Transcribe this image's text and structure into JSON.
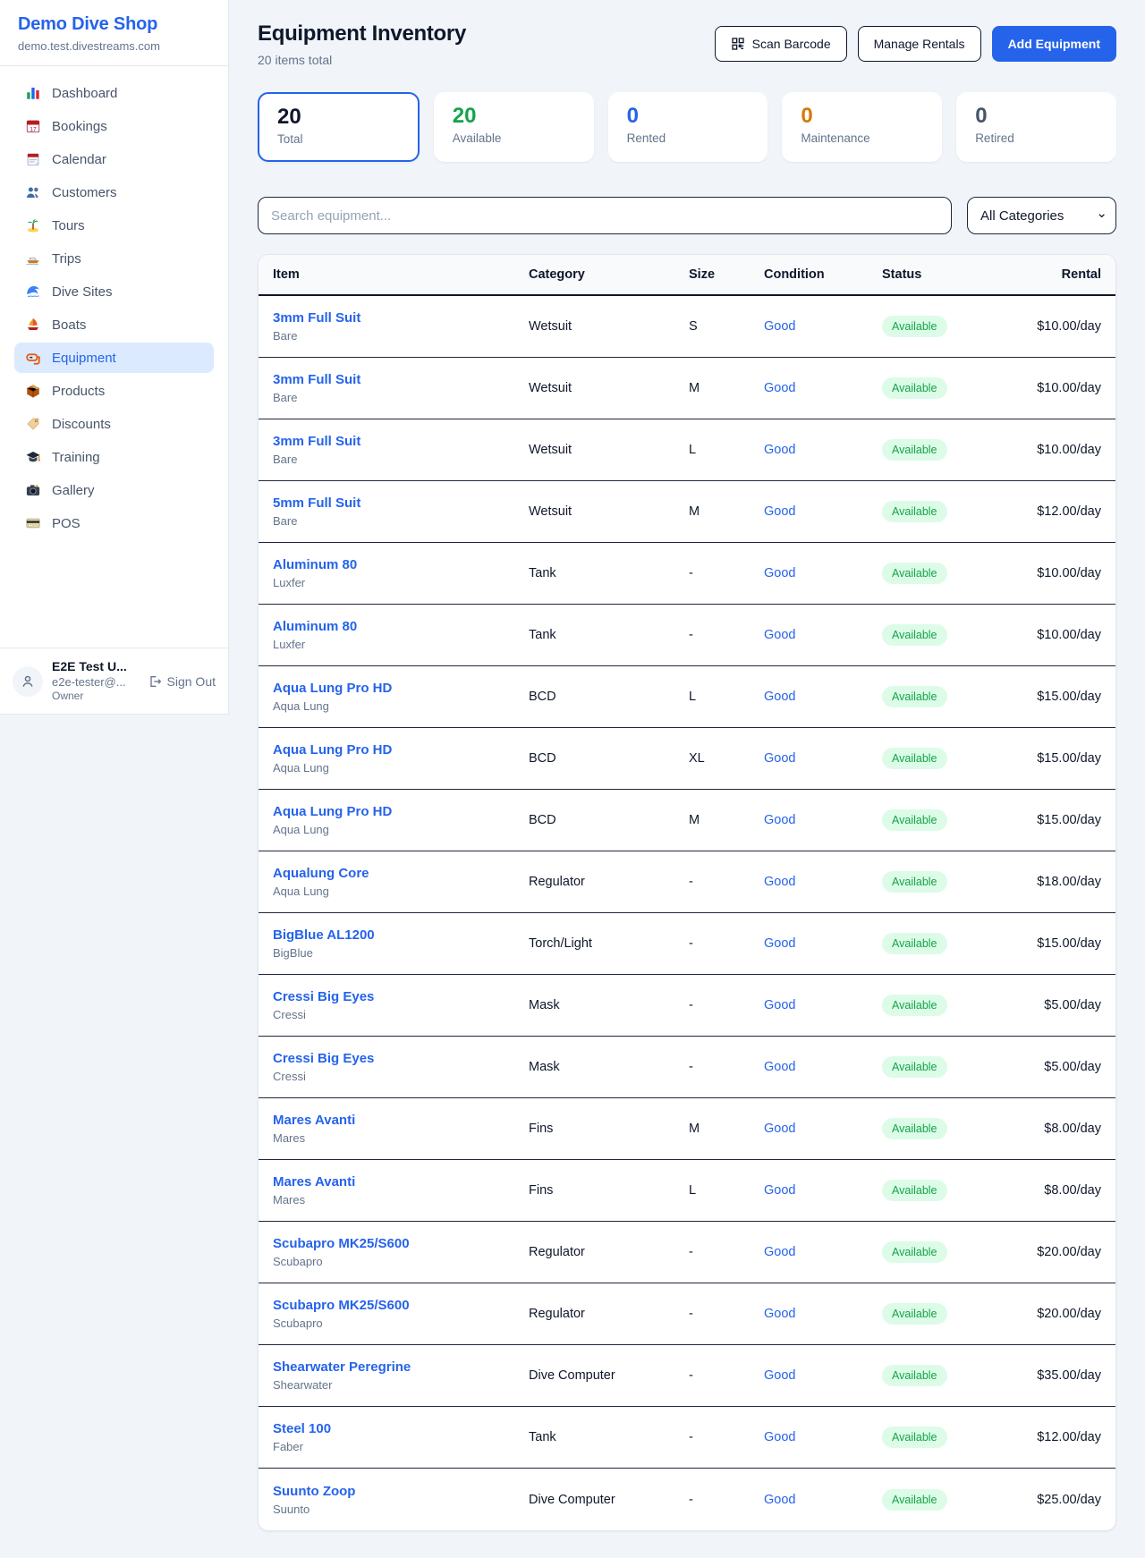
{
  "colors": {
    "accent": "#2563eb",
    "available_green": "#16a34a",
    "maintenance_orange": "#d97706",
    "retired_gray": "#475569",
    "badge_bg": "#dcfce7"
  },
  "sidebar": {
    "brand": "Demo Dive Shop",
    "domain": "demo.test.divestreams.com",
    "items": [
      {
        "label": "Dashboard",
        "icon": "bar-chart-icon",
        "active": false
      },
      {
        "label": "Bookings",
        "icon": "calendar-icon",
        "active": false
      },
      {
        "label": "Calendar",
        "icon": "tearoff-calendar-icon",
        "active": false
      },
      {
        "label": "Customers",
        "icon": "people-icon",
        "active": false
      },
      {
        "label": "Tours",
        "icon": "island-icon",
        "active": false
      },
      {
        "label": "Trips",
        "icon": "motorboat-icon",
        "active": false
      },
      {
        "label": "Dive Sites",
        "icon": "wave-icon",
        "active": false
      },
      {
        "label": "Boats",
        "icon": "sailboat-icon",
        "active": false
      },
      {
        "label": "Equipment",
        "icon": "diving-mask-icon",
        "active": true
      },
      {
        "label": "Products",
        "icon": "package-icon",
        "active": false
      },
      {
        "label": "Discounts",
        "icon": "tag-icon",
        "active": false
      },
      {
        "label": "Training",
        "icon": "graduation-cap-icon",
        "active": false
      },
      {
        "label": "Gallery",
        "icon": "camera-icon",
        "active": false
      },
      {
        "label": "POS",
        "icon": "credit-card-icon",
        "active": false
      }
    ],
    "user": {
      "name": "E2E Test U...",
      "email": "e2e-tester@...",
      "role": "Owner",
      "sign_out_label": "Sign Out"
    }
  },
  "header": {
    "title": "Equipment Inventory",
    "subtitle": "20 items total",
    "scan_button": "Scan Barcode",
    "manage_button": "Manage Rentals",
    "add_button": "Add Equipment"
  },
  "stats": [
    {
      "value": "20",
      "label": "Total",
      "color": "#0f172a",
      "selected": true
    },
    {
      "value": "20",
      "label": "Available",
      "color": "#16a34a",
      "selected": false
    },
    {
      "value": "0",
      "label": "Rented",
      "color": "#2563eb",
      "selected": false
    },
    {
      "value": "0",
      "label": "Maintenance",
      "color": "#d97706",
      "selected": false
    },
    {
      "value": "0",
      "label": "Retired",
      "color": "#475569",
      "selected": false
    }
  ],
  "filters": {
    "search_placeholder": "Search equipment...",
    "category_selected": "All Categories"
  },
  "table": {
    "columns": [
      "Item",
      "Category",
      "Size",
      "Condition",
      "Status",
      "Rental"
    ],
    "rows": [
      {
        "name": "3mm Full Suit",
        "brand": "Bare",
        "category": "Wetsuit",
        "size": "S",
        "condition": "Good",
        "status": "Available",
        "rental": "$10.00/day"
      },
      {
        "name": "3mm Full Suit",
        "brand": "Bare",
        "category": "Wetsuit",
        "size": "M",
        "condition": "Good",
        "status": "Available",
        "rental": "$10.00/day"
      },
      {
        "name": "3mm Full Suit",
        "brand": "Bare",
        "category": "Wetsuit",
        "size": "L",
        "condition": "Good",
        "status": "Available",
        "rental": "$10.00/day"
      },
      {
        "name": "5mm Full Suit",
        "brand": "Bare",
        "category": "Wetsuit",
        "size": "M",
        "condition": "Good",
        "status": "Available",
        "rental": "$12.00/day"
      },
      {
        "name": "Aluminum 80",
        "brand": "Luxfer",
        "category": "Tank",
        "size": "-",
        "condition": "Good",
        "status": "Available",
        "rental": "$10.00/day"
      },
      {
        "name": "Aluminum 80",
        "brand": "Luxfer",
        "category": "Tank",
        "size": "-",
        "condition": "Good",
        "status": "Available",
        "rental": "$10.00/day"
      },
      {
        "name": "Aqua Lung Pro HD",
        "brand": "Aqua Lung",
        "category": "BCD",
        "size": "L",
        "condition": "Good",
        "status": "Available",
        "rental": "$15.00/day"
      },
      {
        "name": "Aqua Lung Pro HD",
        "brand": "Aqua Lung",
        "category": "BCD",
        "size": "XL",
        "condition": "Good",
        "status": "Available",
        "rental": "$15.00/day"
      },
      {
        "name": "Aqua Lung Pro HD",
        "brand": "Aqua Lung",
        "category": "BCD",
        "size": "M",
        "condition": "Good",
        "status": "Available",
        "rental": "$15.00/day"
      },
      {
        "name": "Aqualung Core",
        "brand": "Aqua Lung",
        "category": "Regulator",
        "size": "-",
        "condition": "Good",
        "status": "Available",
        "rental": "$18.00/day"
      },
      {
        "name": "BigBlue AL1200",
        "brand": "BigBlue",
        "category": "Torch/Light",
        "size": "-",
        "condition": "Good",
        "status": "Available",
        "rental": "$15.00/day"
      },
      {
        "name": "Cressi Big Eyes",
        "brand": "Cressi",
        "category": "Mask",
        "size": "-",
        "condition": "Good",
        "status": "Available",
        "rental": "$5.00/day"
      },
      {
        "name": "Cressi Big Eyes",
        "brand": "Cressi",
        "category": "Mask",
        "size": "-",
        "condition": "Good",
        "status": "Available",
        "rental": "$5.00/day"
      },
      {
        "name": "Mares Avanti",
        "brand": "Mares",
        "category": "Fins",
        "size": "M",
        "condition": "Good",
        "status": "Available",
        "rental": "$8.00/day"
      },
      {
        "name": "Mares Avanti",
        "brand": "Mares",
        "category": "Fins",
        "size": "L",
        "condition": "Good",
        "status": "Available",
        "rental": "$8.00/day"
      },
      {
        "name": "Scubapro MK25/S600",
        "brand": "Scubapro",
        "category": "Regulator",
        "size": "-",
        "condition": "Good",
        "status": "Available",
        "rental": "$20.00/day"
      },
      {
        "name": "Scubapro MK25/S600",
        "brand": "Scubapro",
        "category": "Regulator",
        "size": "-",
        "condition": "Good",
        "status": "Available",
        "rental": "$20.00/day"
      },
      {
        "name": "Shearwater Peregrine",
        "brand": "Shearwater",
        "category": "Dive Computer",
        "size": "-",
        "condition": "Good",
        "status": "Available",
        "rental": "$35.00/day"
      },
      {
        "name": "Steel 100",
        "brand": "Faber",
        "category": "Tank",
        "size": "-",
        "condition": "Good",
        "status": "Available",
        "rental": "$12.00/day"
      },
      {
        "name": "Suunto Zoop",
        "brand": "Suunto",
        "category": "Dive Computer",
        "size": "-",
        "condition": "Good",
        "status": "Available",
        "rental": "$25.00/day"
      }
    ]
  }
}
